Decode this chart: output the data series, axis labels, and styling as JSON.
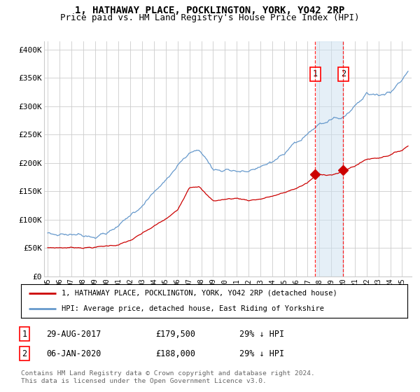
{
  "title": "1, HATHAWAY PLACE, POCKLINGTON, YORK, YO42 2RP",
  "subtitle": "Price paid vs. HM Land Registry's House Price Index (HPI)",
  "ylabel_ticks": [
    "£0",
    "£50K",
    "£100K",
    "£150K",
    "£200K",
    "£250K",
    "£300K",
    "£350K",
    "£400K"
  ],
  "ytick_values": [
    0,
    50000,
    100000,
    150000,
    200000,
    250000,
    300000,
    350000,
    400000
  ],
  "ylim": [
    0,
    415000
  ],
  "xlim_start": 1994.7,
  "xlim_end": 2025.8,
  "hpi_color": "#6699cc",
  "price_color": "#cc0000",
  "sale1_date": 2017.65,
  "sale1_price": 179500,
  "sale1_label": "1",
  "sale2_date": 2020.02,
  "sale2_price": 188000,
  "sale2_label": "2",
  "legend_line1": "1, HATHAWAY PLACE, POCKLINGTON, YORK, YO42 2RP (detached house)",
  "legend_line2": "HPI: Average price, detached house, East Riding of Yorkshire",
  "table_row1": [
    "1",
    "29-AUG-2017",
    "£179,500",
    "29% ↓ HPI"
  ],
  "table_row2": [
    "2",
    "06-JAN-2020",
    "£188,000",
    "29% ↓ HPI"
  ],
  "footnote": "Contains HM Land Registry data © Crown copyright and database right 2024.\nThis data is licensed under the Open Government Licence v3.0.",
  "background_color": "#ffffff",
  "grid_color": "#cccccc",
  "title_fontsize": 10,
  "subtitle_fontsize": 9,
  "tick_fontsize": 8
}
